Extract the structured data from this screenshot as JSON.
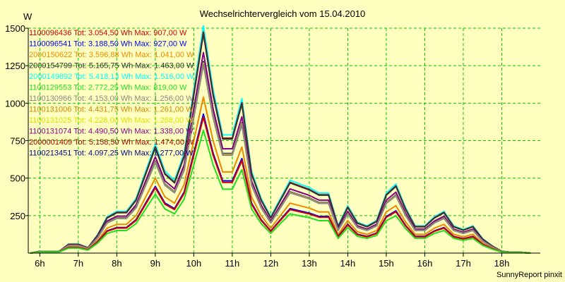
{
  "chart_data": {
    "type": "line",
    "title": "Wechselrichtervergleich vom 15.04.2010",
    "ylabel": "W",
    "xlabel": "",
    "credit": "SunnyReport pinxit",
    "ylim": [
      0,
      1500
    ],
    "xlim": [
      5.7,
      19.0
    ],
    "grid": true,
    "legend_position": "top-left",
    "colors": {
      "background": "#ffffc0",
      "plot_background": "#ffffc0",
      "grid": "#00cc00",
      "axis": "#000000"
    },
    "x_ticks": [
      {
        "value": 6,
        "label": "6h"
      },
      {
        "value": 7,
        "label": "7h"
      },
      {
        "value": 8,
        "label": "8h"
      },
      {
        "value": 9,
        "label": "9h"
      },
      {
        "value": 10,
        "label": "10h"
      },
      {
        "value": 11,
        "label": "11h"
      },
      {
        "value": 12,
        "label": "12h"
      },
      {
        "value": 13,
        "label": "13h"
      },
      {
        "value": 14,
        "label": "14h"
      },
      {
        "value": 15,
        "label": "15h"
      },
      {
        "value": 16,
        "label": "16h"
      },
      {
        "value": 17,
        "label": "17h"
      },
      {
        "value": 18,
        "label": "18h"
      }
    ],
    "y_ticks": [
      {
        "value": 250,
        "label": "250"
      },
      {
        "value": 500,
        "label": "500"
      },
      {
        "value": 750,
        "label": "750"
      },
      {
        "value": 1000,
        "label": "1000"
      },
      {
        "value": 1250,
        "label": "1250"
      },
      {
        "value": 1500,
        "label": "1500"
      }
    ],
    "x": [
      5.75,
      6.0,
      6.25,
      6.5,
      6.75,
      7.0,
      7.25,
      7.5,
      7.75,
      8.0,
      8.25,
      8.5,
      8.75,
      9.0,
      9.25,
      9.5,
      9.75,
      10.0,
      10.25,
      10.5,
      10.75,
      11.0,
      11.25,
      11.5,
      11.75,
      12.0,
      12.25,
      12.5,
      12.75,
      13.0,
      13.25,
      13.5,
      13.75,
      14.0,
      14.25,
      14.5,
      14.75,
      15.0,
      15.25,
      15.5,
      15.75,
      16.0,
      16.25,
      16.5,
      16.75,
      17.0,
      17.25,
      17.5,
      17.75,
      18.0,
      18.25,
      18.5,
      18.75
    ],
    "base_profile": [
      0,
      10,
      10,
      10,
      50,
      50,
      30,
      100,
      200,
      230,
      230,
      300,
      450,
      600,
      450,
      400,
      550,
      900,
      1250,
      900,
      650,
      650,
      850,
      450,
      300,
      200,
      300,
      400,
      380,
      360,
      330,
      330,
      150,
      260,
      170,
      150,
      180,
      330,
      380,
      250,
      150,
      150,
      200,
      230,
      150,
      130,
      150,
      80,
      40,
      10,
      5,
      5,
      0
    ],
    "series": [
      {
        "name": "1100096436",
        "label": "1100096436 Tot: 3.054,50 Wh Max: 907,00 W",
        "color": "#cc0000",
        "max": 907
      },
      {
        "name": "1100096541",
        "label": "1100096541 Tot: 3.188,50 Wh Max: 927,00 W",
        "color": "#0000ee",
        "max": 927
      },
      {
        "name": "2000150622",
        "label": "2000150622 Tot: 3.596,88 Wh Max: 1.041,00 W",
        "color": "#ee8800",
        "max": 1041
      },
      {
        "name": "2000154799",
        "label": "2000154799 Tot: 5.165,75 Wh Max: 1.463,00 W",
        "color": "#333333",
        "max": 1463
      },
      {
        "name": "2000149892",
        "label": "2000149892 Tot: 5.418,13 Wh Max: 1.516,00 W",
        "color": "#00ffff",
        "max": 1516
      },
      {
        "name": "1100129553",
        "label": "1100129553 Tot: 2.772,25 Wh Max: 819,00 W",
        "color": "#22dd22",
        "max": 819
      },
      {
        "name": "1100130966",
        "label": "1100130966 Tot: 4.153,00 Wh Max: 1.256,00 W",
        "color": "#888888",
        "max": 1256
      },
      {
        "name": "1100131006",
        "label": "1100131006 Tot: 4.431,75 Wh Max: 1.261,00 W",
        "color": "#cc8800",
        "max": 1261
      },
      {
        "name": "1100131025",
        "label": "1100131025 Tot: 4.228,00 Wh Max: 1.268,00 W",
        "color": "#dddd00",
        "max": 1268
      },
      {
        "name": "1100131074",
        "label": "1100131074 Tot: 4.490,50 Wh Max: 1.338,00 W",
        "color": "#880088",
        "max": 1338
      },
      {
        "name": "2000001409",
        "label": "2000001409 Tot: 5.158,50 Wh Max: 1.474,00 W",
        "color": "#aa0000",
        "max": 1474
      },
      {
        "name": "1100213451",
        "label": "1100213451 Tot: 4.097,25 Wh Max: 1.277,00 W",
        "color": "#000088",
        "max": 1277
      }
    ]
  }
}
